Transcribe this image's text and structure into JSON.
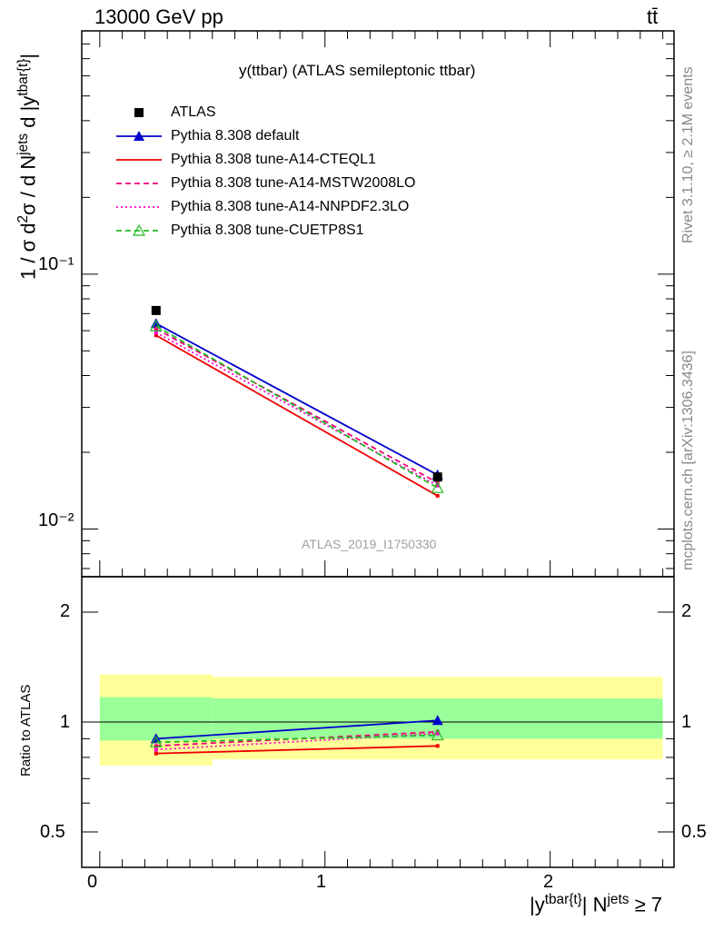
{
  "header": {
    "left": "13000 GeV pp",
    "right": "tt̄"
  },
  "side_labels": {
    "rivet": "Rivet 3.1.10, ≥ 2.1M events",
    "mcplots": "mcplots.cern.ch [arXiv:1306.3436]"
  },
  "plot_title": "y(ttbar) (ATLAS semileptonic ttbar)",
  "watermark": "ATLAS_2019_I1750330",
  "axis_labels": {
    "y_main": "1 / σ d²σ / d N^jets d |y^tbar{t}|",
    "y_ratio": "Ratio to ATLAS",
    "x": "|y^tbar{t}| N^jets ≥ 7"
  },
  "tick_labels": {
    "main_y": [
      "10⁻¹",
      "10⁻²"
    ],
    "ratio_y": [
      "2",
      "1",
      "0.5"
    ],
    "x": [
      "0",
      "1",
      "2"
    ]
  },
  "legend": [
    {
      "label": "ATLAS",
      "color": "#000000",
      "style": "solid",
      "marker": "square"
    },
    {
      "label": "Pythia 8.308 default",
      "color": "#0000cc",
      "style": "solid",
      "marker": "triangle"
    },
    {
      "label": "Pythia 8.308 tune-A14-CTEQL1",
      "color": "#ee0000",
      "style": "solid",
      "marker": "none"
    },
    {
      "label": "Pythia 8.308 tune-A14-MSTW2008LO",
      "color": "#ee0077",
      "style": "dashed",
      "marker": "none"
    },
    {
      "label": "Pythia 8.308 tune-A14-NNPDF2.3LO",
      "color": "#ff00cc",
      "style": "dotted",
      "marker": "none"
    },
    {
      "label": "Pythia 8.308 tune-CUETP8S1",
      "color": "#22bb22",
      "style": "dashed",
      "marker": "open-triangle"
    }
  ],
  "chart_data": {
    "type": "line",
    "x": [
      0.25,
      1.5
    ],
    "x_bins": [
      [
        0,
        0.5
      ],
      [
        0.5,
        2.5
      ]
    ],
    "xlim": [
      -0.08,
      2.55
    ],
    "ylim_main": [
      0.0065,
      0.9
    ],
    "ylog": true,
    "ylim_ratio": [
      0.4,
      2.5
    ],
    "ratio_ylog": true,
    "data": {
      "name": "ATLAS",
      "values": [
        0.072,
        0.016
      ],
      "band_inner": [
        [
          0.89,
          1.17
        ],
        [
          0.9,
          1.16
        ]
      ],
      "band_outer": [
        [
          0.76,
          1.35
        ],
        [
          0.79,
          1.33
        ]
      ]
    },
    "series": [
      {
        "name": "Pythia 8.308 default",
        "values": [
          0.064,
          0.0163
        ],
        "ratio": [
          0.9,
          1.01
        ]
      },
      {
        "name": "Pythia 8.308 tune-A14-CTEQL1",
        "values": [
          0.0575,
          0.0135
        ],
        "ratio": [
          0.82,
          0.86
        ]
      },
      {
        "name": "Pythia 8.308 tune-A14-MSTW2008LO",
        "values": [
          0.061,
          0.0152
        ],
        "ratio": [
          0.86,
          0.94
        ]
      },
      {
        "name": "Pythia 8.308 tune-A14-NNPDF2.3LO",
        "values": [
          0.059,
          0.0148
        ],
        "ratio": [
          0.84,
          0.93
        ]
      },
      {
        "name": "Pythia 8.308 tune-CUETP8S1",
        "values": [
          0.0625,
          0.0145
        ],
        "ratio": [
          0.88,
          0.92
        ]
      }
    ],
    "grid": false
  }
}
